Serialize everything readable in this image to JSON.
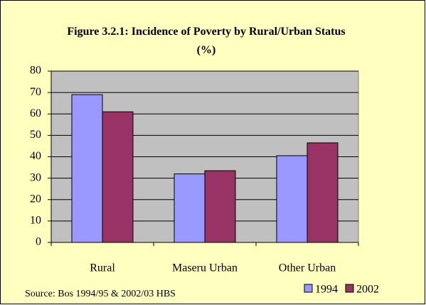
{
  "chart_data": {
    "type": "bar",
    "title": "Figure 3.2.1: Incidence of Poverty by Rural/Urban Status (%)",
    "categories": [
      "Rural",
      "Maseru Urban",
      "Other Urban"
    ],
    "series": [
      {
        "name": "1994",
        "color": "#9999ff",
        "values": [
          69,
          32,
          40.5
        ]
      },
      {
        "name": "2002",
        "color": "#993366",
        "values": [
          61,
          33.5,
          46.5
        ]
      }
    ],
    "ylim": [
      0,
      80
    ],
    "yticks": [
      0,
      10,
      20,
      30,
      40,
      50,
      60,
      70,
      80
    ],
    "grid": true,
    "legend": "bottom-right",
    "source": "Source: Bos  1994/95 & 2002/03 HBS"
  }
}
